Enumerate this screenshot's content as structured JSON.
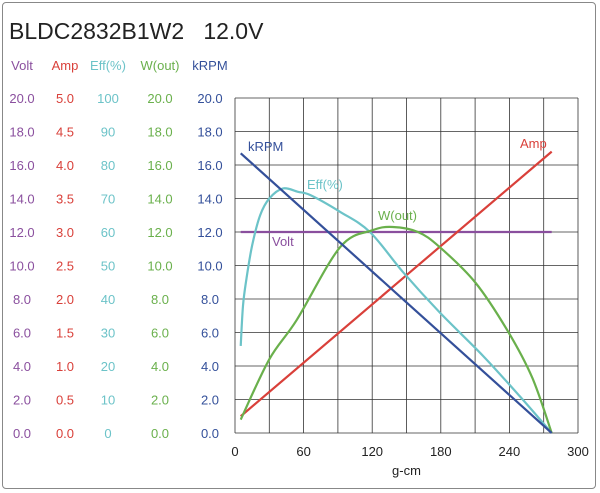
{
  "chart_data": {
    "type": "line",
    "title": "BLDC2832B1W2   12.0V",
    "xlabel": "g-cm",
    "xlim": [
      0,
      300
    ],
    "xticks": [
      "0",
      "60",
      "120",
      "180",
      "240",
      "300"
    ],
    "axes": [
      {
        "name": "Volt",
        "color": "#8a4f9e",
        "ticks": [
          "0.0",
          "2.0",
          "4.0",
          "6.0",
          "8.0",
          "10.0",
          "12.0",
          "14.0",
          "16.0",
          "18.0",
          "20.0"
        ],
        "max": 20
      },
      {
        "name": "Amp",
        "color": "#d9403a",
        "ticks": [
          "0.0",
          "0.5",
          "1.0",
          "1.5",
          "2.0",
          "2.5",
          "3.0",
          "3.5",
          "4.0",
          "4.5",
          "5.0"
        ],
        "max": 5
      },
      {
        "name": "Eff(%)",
        "color": "#6cc3c8",
        "ticks": [
          "0",
          "10",
          "20",
          "30",
          "40",
          "50",
          "60",
          "70",
          "80",
          "90",
          "100"
        ],
        "max": 100
      },
      {
        "name": "W(out)",
        "color": "#6ab04c",
        "ticks": [
          "0.0",
          "2.0",
          "4.0",
          "6.0",
          "8.0",
          "10.0",
          "12.0",
          "14.0",
          "16.0",
          "18.0",
          "20.0"
        ],
        "max": 20
      },
      {
        "name": "kRPM",
        "color": "#34509a",
        "ticks": [
          "0.0",
          "2.0",
          "4.0",
          "6.0",
          "8.0",
          "10.0",
          "12.0",
          "14.0",
          "16.0",
          "18.0",
          "20.0"
        ],
        "max": 20
      }
    ],
    "series": [
      {
        "name": "Volt",
        "label": "Volt",
        "axis": 0,
        "color": "#8a4f9e",
        "x": [
          5,
          277
        ],
        "y": [
          12,
          12
        ]
      },
      {
        "name": "Amp",
        "label": "Amp",
        "axis": 1,
        "color": "#d9403a",
        "x": [
          5,
          277
        ],
        "y": [
          0.25,
          4.2
        ]
      },
      {
        "name": "Eff",
        "label": "Eff(%)",
        "axis": 2,
        "color": "#6cc3c8",
        "x": [
          5,
          7,
          10,
          15,
          22,
          30,
          42,
          55,
          66,
          92,
          118,
          147,
          179,
          217,
          249,
          277
        ],
        "y": [
          26,
          38,
          46,
          56,
          65,
          70,
          73,
          72,
          71,
          66,
          60,
          48,
          36,
          23,
          11,
          0
        ]
      },
      {
        "name": "W(out)",
        "label": "W(out)",
        "axis": 3,
        "color": "#6ab04c",
        "x": [
          5,
          30,
          54,
          92,
          120,
          138,
          160,
          179,
          210,
          238,
          260,
          277
        ],
        "y": [
          0.8,
          4.4,
          6.75,
          11.1,
          12.1,
          12.3,
          12,
          11.1,
          9,
          6.15,
          3.3,
          0
        ]
      },
      {
        "name": "kRPM",
        "label": "kRPM",
        "axis": 4,
        "color": "#34509a",
        "x": [
          5,
          277
        ],
        "y": [
          16.7,
          0
        ]
      }
    ]
  }
}
